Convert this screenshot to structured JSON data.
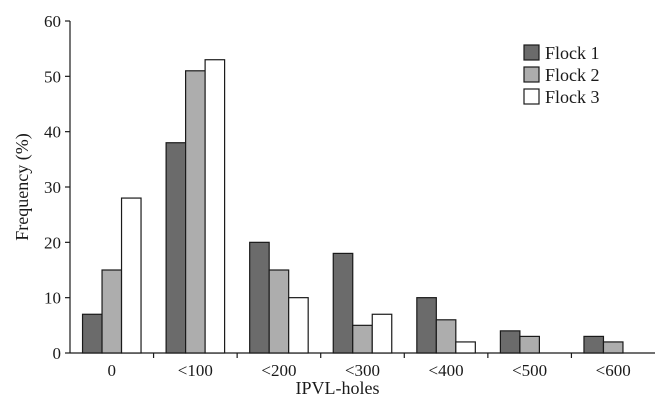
{
  "chart_data": {
    "type": "bar",
    "title": "",
    "xlabel": "IPVL-holes",
    "ylabel": "Frequency (%)",
    "ylim": [
      0,
      60
    ],
    "yticks": [
      0,
      10,
      20,
      30,
      40,
      50,
      60
    ],
    "categories": [
      "0",
      "<100",
      "<200",
      "<300",
      "<400",
      "<500",
      "<600"
    ],
    "series": [
      {
        "name": "Flock 1",
        "color": "#6b6b6b",
        "values": [
          7,
          38,
          20,
          18,
          10,
          4,
          3
        ]
      },
      {
        "name": "Flock 2",
        "color": "#adadad",
        "values": [
          15,
          51,
          15,
          5,
          6,
          3,
          2
        ]
      },
      {
        "name": "Flock 3",
        "color": "#ffffff",
        "values": [
          28,
          53,
          10,
          7,
          2,
          0,
          0
        ]
      }
    ],
    "legend_position": "top-right",
    "grid": false
  }
}
